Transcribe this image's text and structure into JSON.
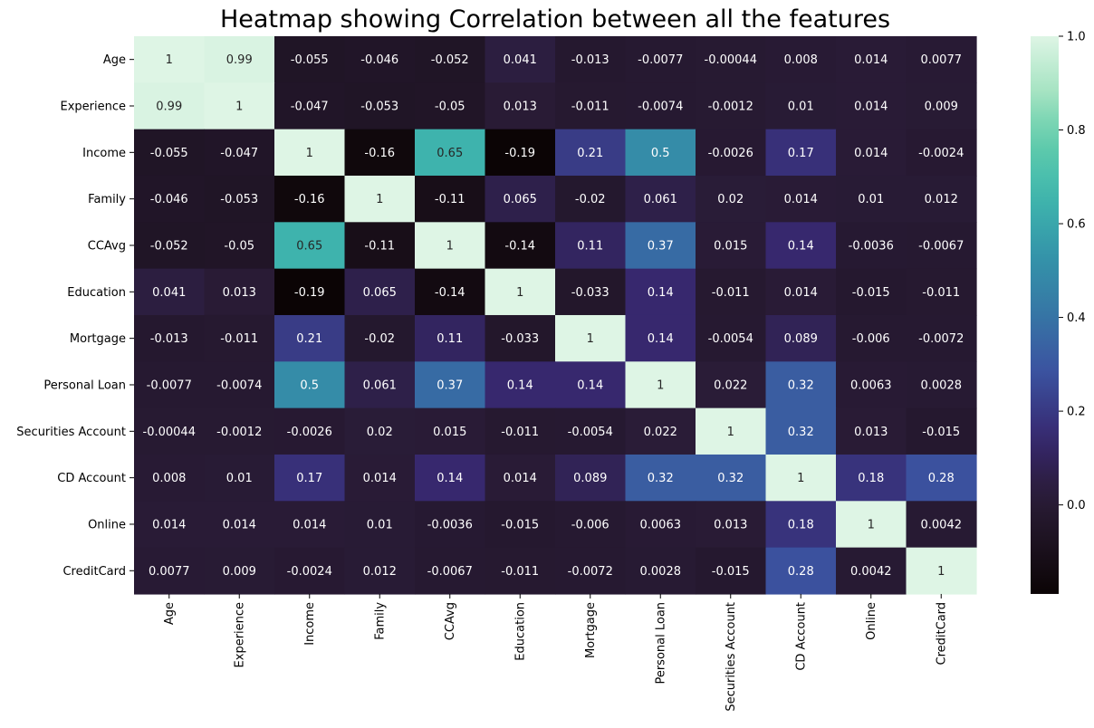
{
  "chart_data": {
    "type": "heatmap",
    "title": "Heatmap showing Correlation between all the features",
    "xlabel": "",
    "ylabel": "",
    "labels": [
      "Age",
      "Experience",
      "Income",
      "Family",
      "CCAvg",
      "Education",
      "Mortgage",
      "Personal Loan",
      "Securities Account",
      "CD Account",
      "Online",
      "CreditCard"
    ],
    "matrix": [
      [
        "1",
        "0.99",
        "-0.055",
        "-0.046",
        "-0.052",
        "0.041",
        "-0.013",
        "-0.0077",
        "-0.00044",
        "0.008",
        "0.014",
        "0.0077"
      ],
      [
        "0.99",
        "1",
        "-0.047",
        "-0.053",
        "-0.05",
        "0.013",
        "-0.011",
        "-0.0074",
        "-0.0012",
        "0.01",
        "0.014",
        "0.009"
      ],
      [
        "-0.055",
        "-0.047",
        "1",
        "-0.16",
        "0.65",
        "-0.19",
        "0.21",
        "0.5",
        "-0.0026",
        "0.17",
        "0.014",
        "-0.0024"
      ],
      [
        "-0.046",
        "-0.053",
        "-0.16",
        "1",
        "-0.11",
        "0.065",
        "-0.02",
        "0.061",
        "0.02",
        "0.014",
        "0.01",
        "0.012"
      ],
      [
        "-0.052",
        "-0.05",
        "0.65",
        "-0.11",
        "1",
        "-0.14",
        "0.11",
        "0.37",
        "0.015",
        "0.14",
        "-0.0036",
        "-0.0067"
      ],
      [
        "0.041",
        "0.013",
        "-0.19",
        "0.065",
        "-0.14",
        "1",
        "-0.033",
        "0.14",
        "-0.011",
        "0.014",
        "-0.015",
        "-0.011"
      ],
      [
        "-0.013",
        "-0.011",
        "0.21",
        "-0.02",
        "0.11",
        "-0.033",
        "1",
        "0.14",
        "-0.0054",
        "0.089",
        "-0.006",
        "-0.0072"
      ],
      [
        "-0.0077",
        "-0.0074",
        "0.5",
        "0.061",
        "0.37",
        "0.14",
        "0.14",
        "1",
        "0.022",
        "0.32",
        "0.0063",
        "0.0028"
      ],
      [
        "-0.00044",
        "-0.0012",
        "-0.0026",
        "0.02",
        "0.015",
        "-0.011",
        "-0.0054",
        "0.022",
        "1",
        "0.32",
        "0.013",
        "-0.015"
      ],
      [
        "0.008",
        "0.01",
        "0.17",
        "0.014",
        "0.14",
        "0.014",
        "0.089",
        "0.32",
        "0.32",
        "1",
        "0.18",
        "0.28"
      ],
      [
        "0.014",
        "0.014",
        "0.014",
        "0.01",
        "-0.0036",
        "-0.015",
        "-0.006",
        "0.0063",
        "0.013",
        "0.18",
        "1",
        "0.0042"
      ],
      [
        "0.0077",
        "0.009",
        "-0.0024",
        "0.012",
        "-0.0067",
        "-0.011",
        "-0.0072",
        "0.0028",
        "-0.015",
        "0.28",
        "0.0042",
        "1"
      ]
    ],
    "colorbar": {
      "range": [
        -0.19,
        1.0
      ],
      "ticks": [
        "0.0",
        "0.2",
        "0.4",
        "0.6",
        "0.8",
        "1.0"
      ],
      "tick_values": [
        0.0,
        0.2,
        0.4,
        0.6,
        0.8,
        1.0
      ],
      "colormap": "mako"
    },
    "grid": false,
    "legend": "colorbar-right"
  }
}
